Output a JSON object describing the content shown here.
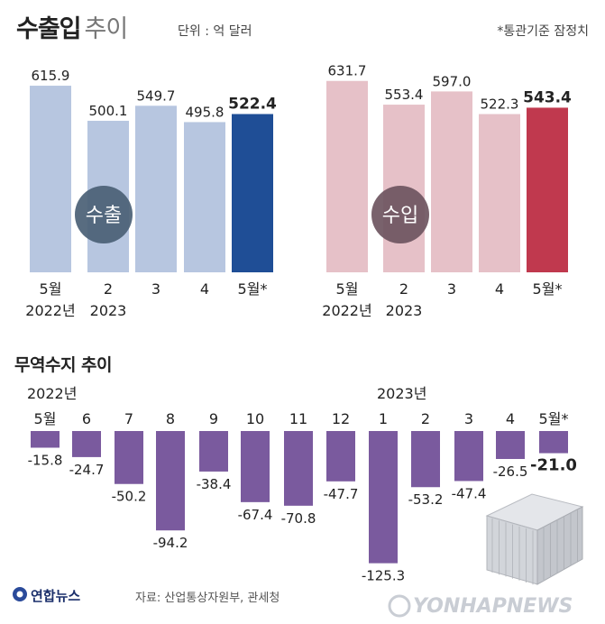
{
  "header": {
    "title": "수출입",
    "title_suffix": "추이",
    "unit": "단위 : 억 달러",
    "note": "*통관기준 잠정치"
  },
  "chart_data": [
    {
      "type": "bar",
      "name": "수출",
      "label": "수출",
      "categories": [
        "5월\n2022년",
        "2\n2023",
        "3",
        "4",
        "5월*"
      ],
      "values": [
        615.9,
        500.1,
        549.7,
        495.8,
        522.4
      ],
      "value_labels": [
        "615.9",
        "500.1",
        "549.7",
        "495.8",
        "522.4"
      ],
      "highlight_index": 4,
      "colors": {
        "base": "#b7c6e0",
        "highlight": "#1f4e96",
        "badge": "#4a5f75"
      },
      "ylim": [
        0,
        650
      ]
    },
    {
      "type": "bar",
      "name": "수입",
      "label": "수입",
      "categories": [
        "5월\n2022년",
        "2\n2023",
        "3",
        "4",
        "5월*"
      ],
      "values": [
        631.7,
        553.4,
        597.0,
        522.3,
        543.4
      ],
      "value_labels": [
        "631.7",
        "553.4",
        "597.0",
        "522.3",
        "543.4"
      ],
      "highlight_index": 4,
      "colors": {
        "base": "#e6c1c8",
        "highlight": "#c0394e",
        "badge": "#6e5560"
      },
      "ylim": [
        0,
        650
      ]
    },
    {
      "type": "bar",
      "name": "무역수지",
      "title": "무역수지 추이",
      "year_labels": [
        "2022년",
        "2023년"
      ],
      "categories": [
        "5월",
        "6",
        "7",
        "8",
        "9",
        "10",
        "11",
        "12",
        "1",
        "2",
        "3",
        "4",
        "5월*"
      ],
      "values": [
        -15.8,
        -24.7,
        -50.2,
        -94.2,
        -38.4,
        -67.4,
        -70.8,
        -47.7,
        -125.3,
        -53.2,
        -47.4,
        -26.5,
        -21.0
      ],
      "value_labels": [
        "-15.8",
        "-24.7",
        "-50.2",
        "-94.2",
        "-38.4",
        "-67.4",
        "-70.8",
        "-47.7",
        "-125.3",
        "-53.2",
        "-47.4",
        "-26.5",
        "-21.0"
      ],
      "highlight_index": 12,
      "colors": {
        "bar": "#7a5a9e"
      },
      "ylim": [
        -130,
        0
      ]
    }
  ],
  "footer": {
    "logo": "연합뉴스",
    "source": "자료: 산업통상자원부, 관세청",
    "watermark": "YONHAPNEWS"
  }
}
